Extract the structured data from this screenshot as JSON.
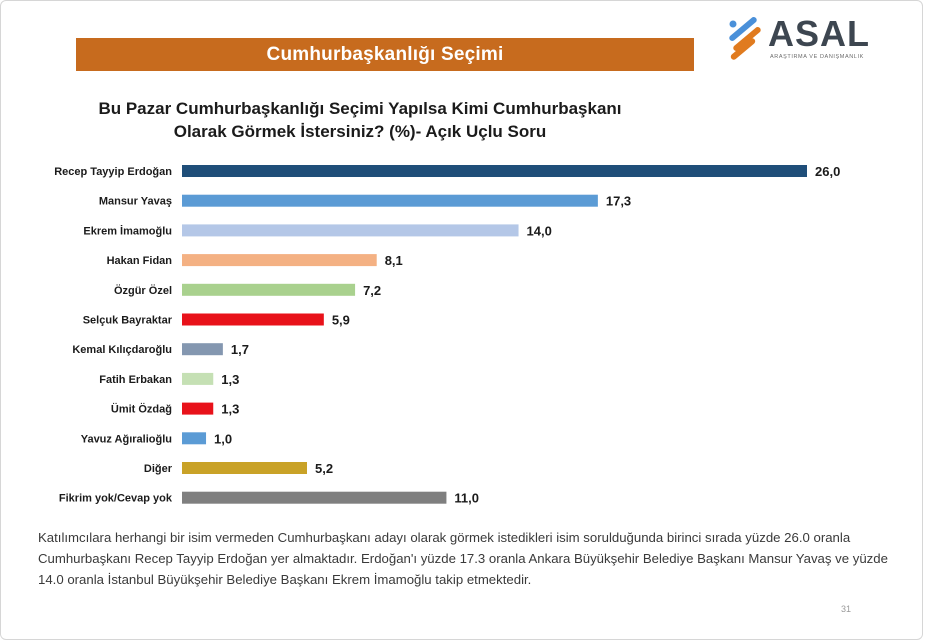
{
  "header": {
    "banner_title": "Cumhurbaşkanlığı Seçimi",
    "logo_name": "ASAL",
    "logo_subtitle": "ARAŞTIRMA VE DANIŞMANLIK"
  },
  "question": {
    "line1": "Bu Pazar Cumhurbaşkanlığı Seçimi Yapılsa Kimi Cumhurbaşkanı",
    "line2": "Olarak Görmek İstersiniz? (%)- Açık Uçlu Soru"
  },
  "chart_data": {
    "type": "bar",
    "orientation": "horizontal",
    "title": "Bu Pazar Cumhurbaşkanlığı Seçimi Yapılsa Kimi Cumhurbaşkanı Olarak Görmek İstersiniz? (%)- Açık Uçlu Soru",
    "categories": [
      "Recep Tayyip Erdoğan",
      "Mansur Yavaş",
      "Ekrem İmamoğlu",
      "Hakan Fidan",
      "Özgür Özel",
      "Selçuk Bayraktar",
      "Kemal Kılıçdaroğlu",
      "Fatih Erbakan",
      "Ümit Özdağ",
      "Yavuz Ağıralioğlu",
      "Diğer",
      "Fikrim yok/Cevap yok"
    ],
    "values": [
      26.0,
      17.3,
      14.0,
      8.1,
      7.2,
      5.9,
      1.7,
      1.3,
      1.3,
      1.0,
      5.2,
      11.0
    ],
    "value_labels": [
      "26,0",
      "17,3",
      "14,0",
      "8,1",
      "7,2",
      "5,9",
      "1,7",
      "1,3",
      "1,3",
      "1,0",
      "5,2",
      "11,0"
    ],
    "colors": [
      "#1f4e79",
      "#5b9bd5",
      "#b4c7e7",
      "#f4b183",
      "#a9d18e",
      "#e8121a",
      "#8497b0",
      "#c5e0b4",
      "#e8121a",
      "#5b9bd5",
      "#c9a227",
      "#7f7f7f"
    ],
    "xlim": [
      0,
      26
    ],
    "grid": false,
    "legend": "none"
  },
  "note": "Katılımcılara herhangi bir isim vermeden Cumhurbaşkanı adayı olarak görmek istedikleri isim sorulduğunda birinci sırada yüzde 26.0 oranla Cumhurbaşkanı Recep Tayyip Erdoğan yer almaktadır. Erdoğan'ı yüzde 17.3 oranla Ankara Büyükşehir Belediye Başkanı Mansur Yavaş ve yüzde 14.0 oranla İstanbul Büyükşehir Belediye Başkanı Ekrem İmamoğlu takip etmektedir.",
  "page_number": "31"
}
